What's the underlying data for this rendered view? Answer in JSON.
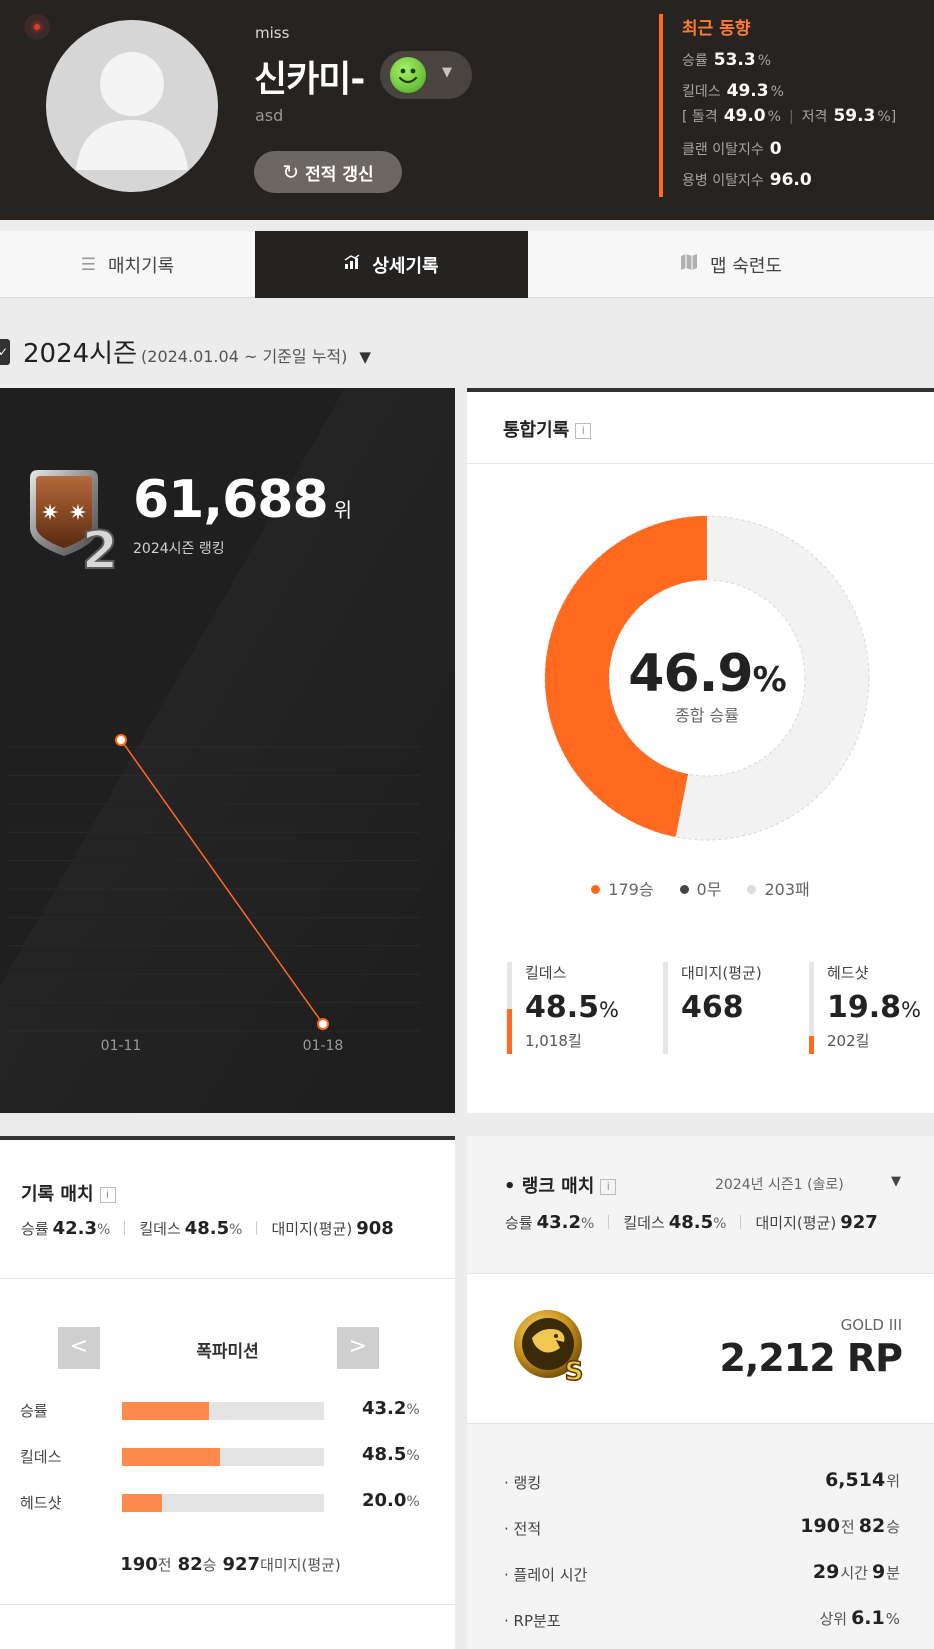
{
  "profile": {
    "sub_name": "miss",
    "nickname": "신카미-",
    "tag": "asd",
    "refresh_label": "전적 갱신"
  },
  "recent": {
    "title": "최근 동향",
    "win_rate_label": "승률",
    "win_rate": "53.3",
    "win_rate_unit": "%",
    "kd_label": "킬데스",
    "kd": "49.3",
    "kd_unit": "%",
    "assault_label": "돌격",
    "assault": "49.0",
    "assault_unit": "%",
    "sniper_label": "저격",
    "sniper": "59.3",
    "sniper_unit": "%",
    "bracket_open": "[",
    "bracket_close": "]",
    "clan_leave_label": "클랜 이탈지수",
    "clan_leave": "0",
    "merc_leave_label": "용병 이탈지수",
    "merc_leave": "96.0"
  },
  "tabs": [
    {
      "label": "매치기록",
      "icon": "list-icon"
    },
    {
      "label": "상세기록",
      "icon": "bar-chart-icon"
    },
    {
      "label": "맵 숙련도",
      "icon": "map-icon"
    }
  ],
  "season": {
    "title": "2024시즌",
    "range": "(2024.01.04 ~ 기준일 누적)",
    "check_icon": "✓",
    "dropdown_icon": "▼"
  },
  "ranking": {
    "value": "61,688",
    "unit": "위",
    "caption": "2024시즌 랭킹",
    "badge_number": "2"
  },
  "chart_data": {
    "type": "line",
    "x": [
      "01-11",
      "01-18"
    ],
    "values": [
      1.0,
      0.0
    ],
    "color": "#ff6a1f"
  },
  "overall": {
    "title": "통합기록",
    "info_icon": "i",
    "win_rate": "46.9",
    "win_rate_unit": "%",
    "win_rate_label": "종합 승률",
    "win_fraction": 0.469,
    "legend": [
      {
        "label": "179승",
        "color": "#ff6a1f"
      },
      {
        "label": "0무",
        "color": "#444444"
      },
      {
        "label": "203패",
        "color": "#dddddd"
      }
    ],
    "metrics": [
      {
        "label": "킬데스",
        "value": "48.5",
        "unit": "%",
        "sub": "1,018킬",
        "fill": 0.485
      },
      {
        "label": "대미지(평균)",
        "value": "468",
        "unit": "",
        "sub": "",
        "fill": 0
      },
      {
        "label": "헤드샷",
        "value": "19.8",
        "unit": "%",
        "sub": "202킬",
        "fill": 0.198
      }
    ]
  },
  "record_match": {
    "title": "기록 매치",
    "win_rate_label": "승률",
    "win_rate": "42.3",
    "win_rate_unit": "%",
    "kd_label": "킬데스",
    "kd": "48.5",
    "kd_unit": "%",
    "damage_label": "대미지(평균)",
    "damage": "908",
    "prev": "<",
    "next": ">",
    "mode": "폭파미션",
    "bars": [
      {
        "label": "승률",
        "value": "43.2",
        "unit": "%",
        "fill": 0.432
      },
      {
        "label": "킬데스",
        "value": "48.5",
        "unit": "%",
        "fill": 0.485
      },
      {
        "label": "헤드샷",
        "value": "20.0",
        "unit": "%",
        "fill": 0.2
      }
    ],
    "foot": {
      "games": "190",
      "games_unit": "전",
      "wins": "82",
      "wins_unit": "승",
      "damage": "927",
      "damage_unit": "대미지(평균)"
    }
  },
  "rank_match": {
    "title": "• 랭크 매치",
    "season_select": "2024년 시즌1 (솔로)",
    "dropdown_icon": "▼",
    "win_rate_label": "승률",
    "win_rate": "43.2",
    "win_rate_unit": "%",
    "kd_label": "킬데스",
    "kd": "48.5",
    "kd_unit": "%",
    "damage_label": "대미지(평균)",
    "damage": "927",
    "tier": "GOLD III",
    "rp": "2,212 RP",
    "details": {
      "ranking_label": "· 랭킹",
      "ranking": "6,514",
      "ranking_unit": "위",
      "record_label": "· 전적",
      "games": "190",
      "games_unit": "전",
      "wins": "82",
      "wins_unit": "승",
      "playtime_label": "· 플레이 시간",
      "hours": "29",
      "hours_unit": "시간",
      "minutes": "9",
      "minutes_unit": "분",
      "rp_dist_label": "· RP분포",
      "rp_dist_prefix": "상위",
      "rp_dist": "6.1",
      "rp_dist_unit": "%"
    }
  }
}
